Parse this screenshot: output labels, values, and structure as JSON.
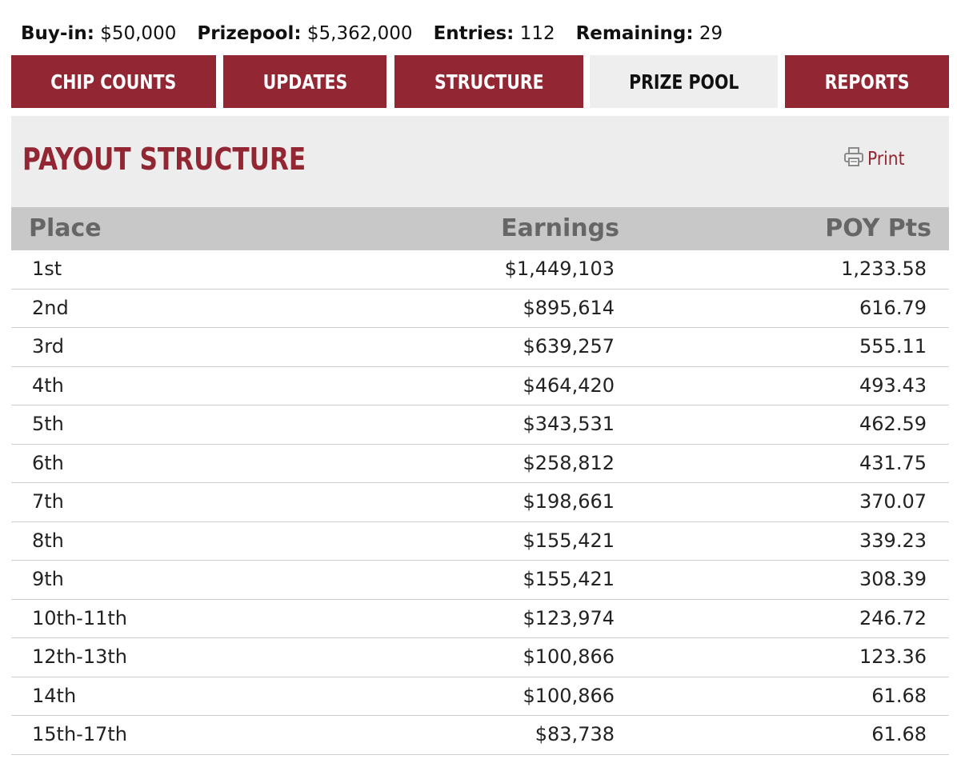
{
  "summary": {
    "buyin_label": "Buy-in:",
    "buyin_value": "$50,000",
    "prizepool_label": "Prizepool:",
    "prizepool_value": "$5,362,000",
    "entries_label": "Entries:",
    "entries_value": "112",
    "remaining_label": "Remaining:",
    "remaining_value": "29"
  },
  "tabs": [
    {
      "label": "CHIP COUNTS",
      "active": false
    },
    {
      "label": "UPDATES",
      "active": false
    },
    {
      "label": "STRUCTURE",
      "active": false
    },
    {
      "label": "PRIZE POOL",
      "active": true
    },
    {
      "label": "REPORTS",
      "active": false
    }
  ],
  "panel": {
    "title": "PAYOUT STRUCTURE",
    "print_label": "Print",
    "print_icon": "printer-icon"
  },
  "table": {
    "headers": {
      "place": "Place",
      "earnings": "Earnings",
      "points": "POY Pts"
    },
    "rows": [
      {
        "place": "1st",
        "earnings": "$1,449,103",
        "points": "1,233.58"
      },
      {
        "place": "2nd",
        "earnings": "$895,614",
        "points": "616.79"
      },
      {
        "place": "3rd",
        "earnings": "$639,257",
        "points": "555.11"
      },
      {
        "place": "4th",
        "earnings": "$464,420",
        "points": "493.43"
      },
      {
        "place": "5th",
        "earnings": "$343,531",
        "points": "462.59"
      },
      {
        "place": "6th",
        "earnings": "$258,812",
        "points": "431.75"
      },
      {
        "place": "7th",
        "earnings": "$198,661",
        "points": "370.07"
      },
      {
        "place": "8th",
        "earnings": "$155,421",
        "points": "339.23"
      },
      {
        "place": "9th",
        "earnings": "$155,421",
        "points": "308.39"
      },
      {
        "place": "10th-11th",
        "earnings": "$123,974",
        "points": "246.72"
      },
      {
        "place": "12th-13th",
        "earnings": "$100,866",
        "points": "123.36"
      },
      {
        "place": "14th",
        "earnings": "$100,866",
        "points": "61.68"
      },
      {
        "place": "15th-17th",
        "earnings": "$83,738",
        "points": "61.68"
      }
    ]
  },
  "colors": {
    "brand": "#922733",
    "tab_active_bg": "#eeeeee",
    "header_bg": "#c8c8c8",
    "panel_bg": "#ededed"
  }
}
